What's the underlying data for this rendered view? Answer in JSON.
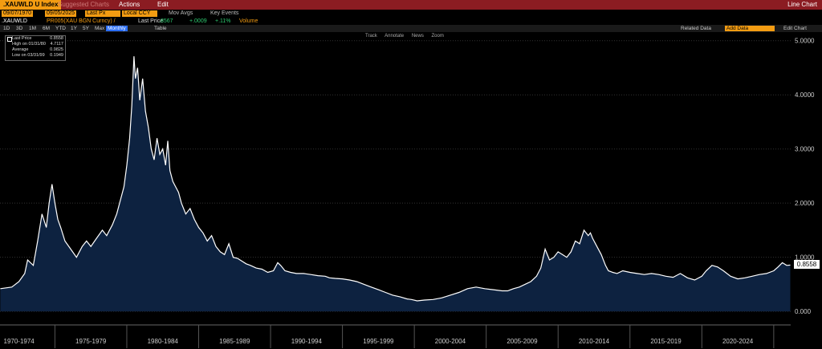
{
  "topbar": {
    "ticker": ".XAUWLD U Index",
    "suggested": "Suggested Charts",
    "actions": "Actions",
    "edit": "Edit",
    "chart_type": "Line Chart"
  },
  "controls": {
    "start_date": "09/07/1970",
    "end_date": "09/05/2025",
    "price_field": "Last Px",
    "currency": "Local CCY",
    "mov_avgs": "Mov Avgs",
    "key_events": "Key Events"
  },
  "security_row": {
    "security": ".XAUWLD",
    "source": "PR005(XAU BGN Curncy) /",
    "last_price_label": "Last Price",
    "last_price": ".8567",
    "change": "+.0009",
    "change_pct": "+.11%",
    "volume": "Volume"
  },
  "period_bar": {
    "periods": [
      "1D",
      "3D",
      "1M",
      "6M",
      "YTD",
      "1Y",
      "5Y",
      "Max"
    ],
    "frequency": "Monthly",
    "table": "Table",
    "related_data": "Related Data",
    "add_data": "Add Data",
    "edit_chart": "Edit Chart"
  },
  "tools": [
    "Track",
    "Annotate",
    "News",
    "Zoom"
  ],
  "legend": {
    "rows": [
      {
        "k": "Last Price",
        "v": "0.8558"
      },
      {
        "k": "High on 01/31/80",
        "v": "4.7117"
      },
      {
        "k": "Average",
        "v": "0.9825"
      },
      {
        "k": "Low on 03/31/99",
        "v": "0.1949"
      }
    ]
  },
  "price_flag": "0.8558",
  "chart_data": {
    "type": "area",
    "title": "",
    "xlabel": "",
    "ylabel": "",
    "xlim": [
      1970.68,
      2025.68
    ],
    "ylim": [
      -0.25,
      5.1
    ],
    "yticks": [
      0,
      1,
      2,
      3,
      4,
      5
    ],
    "ytick_labels": [
      "0.000",
      "1.0000",
      "2.0000",
      "3.0000",
      "4.0000",
      "5.0000"
    ],
    "xticks": [
      1972,
      1977,
      1982,
      1987,
      1992,
      1997,
      2002,
      2007,
      2012,
      2017,
      2022
    ],
    "xtick_labels": [
      "1970-1974",
      "1975-1979",
      "1980-1984",
      "1985-1989",
      "1990-1994",
      "1995-1999",
      "2000-2004",
      "2005-2009",
      "2010-2014",
      "2015-2019",
      "2020-2024"
    ],
    "series": [
      {
        "x": [
          1970.7,
          1971.5,
          1972.0,
          1972.4,
          1972.6,
          1973.0,
          1973.3,
          1973.6,
          1973.9,
          1974.1,
          1974.3,
          1974.5,
          1974.7,
          1974.9,
          1975.2,
          1975.6,
          1976.0,
          1976.4,
          1976.7,
          1977.0,
          1977.4,
          1977.8,
          1978.1,
          1978.5,
          1978.8,
          1979.1,
          1979.3,
          1979.5,
          1979.7,
          1979.85,
          1980.0,
          1980.1,
          1980.25,
          1980.4,
          1980.6,
          1980.8,
          1981.0,
          1981.2,
          1981.4,
          1981.6,
          1981.8,
          1982.0,
          1982.2,
          1982.35,
          1982.5,
          1982.7,
          1982.9,
          1983.1,
          1983.3,
          1983.6,
          1983.9,
          1984.2,
          1984.5,
          1984.8,
          1985.1,
          1985.4,
          1985.7,
          1986.0,
          1986.3,
          1986.6,
          1986.9,
          1987.2,
          1987.5,
          1987.8,
          1988.1,
          1988.5,
          1988.9,
          1989.3,
          1989.7,
          1990.0,
          1990.2,
          1990.5,
          1990.9,
          1991.3,
          1991.8,
          1992.3,
          1992.8,
          1993.3,
          1993.6,
          1994.0,
          1994.5,
          1995.0,
          1995.5,
          1996.0,
          1996.5,
          1997.0,
          1997.5,
          1998.0,
          1998.5,
          1999.0,
          1999.3,
          1999.7,
          2000.2,
          2000.8,
          2001.4,
          2002.0,
          2002.6,
          2003.2,
          2003.8,
          2004.4,
          2005.0,
          2005.6,
          2006.0,
          2006.4,
          2006.8,
          2007.2,
          2007.6,
          2008.0,
          2008.3,
          2008.6,
          2008.9,
          2009.2,
          2009.5,
          2009.8,
          2010.1,
          2010.4,
          2010.7,
          2011.0,
          2011.3,
          2011.6,
          2011.75,
          2011.9,
          2012.2,
          2012.5,
          2012.8,
          2013.0,
          2013.3,
          2013.6,
          2014.0,
          2014.5,
          2015.0,
          2015.5,
          2016.0,
          2016.5,
          2017.0,
          2017.5,
          2018.0,
          2018.5,
          2019.0,
          2019.5,
          2019.8,
          2020.2,
          2020.6,
          2021.0,
          2021.5,
          2022.0,
          2022.5,
          2023.0,
          2023.5,
          2024.0,
          2024.5,
          2024.8,
          2025.1,
          2025.4,
          2025.65
        ],
        "y": [
          0.42,
          0.45,
          0.55,
          0.7,
          0.95,
          0.85,
          1.3,
          1.8,
          1.55,
          2.0,
          2.35,
          2.0,
          1.7,
          1.55,
          1.3,
          1.15,
          1.0,
          1.2,
          1.3,
          1.2,
          1.35,
          1.5,
          1.4,
          1.6,
          1.8,
          2.1,
          2.3,
          2.7,
          3.2,
          3.8,
          4.7117,
          4.3,
          4.5,
          3.9,
          4.3,
          3.7,
          3.4,
          3.0,
          2.8,
          3.2,
          2.9,
          3.0,
          2.7,
          3.15,
          2.6,
          2.4,
          2.3,
          2.2,
          2.0,
          1.8,
          1.9,
          1.7,
          1.55,
          1.45,
          1.3,
          1.4,
          1.2,
          1.1,
          1.05,
          1.25,
          1.0,
          0.98,
          0.93,
          0.88,
          0.85,
          0.8,
          0.78,
          0.72,
          0.75,
          0.9,
          0.85,
          0.75,
          0.72,
          0.7,
          0.7,
          0.68,
          0.66,
          0.65,
          0.62,
          0.61,
          0.6,
          0.58,
          0.55,
          0.5,
          0.45,
          0.4,
          0.35,
          0.3,
          0.27,
          0.23,
          0.22,
          0.1949,
          0.21,
          0.22,
          0.25,
          0.3,
          0.35,
          0.42,
          0.45,
          0.42,
          0.4,
          0.38,
          0.38,
          0.42,
          0.45,
          0.5,
          0.55,
          0.65,
          0.8,
          1.15,
          0.95,
          1.0,
          1.1,
          1.05,
          1.0,
          1.1,
          1.3,
          1.25,
          1.5,
          1.4,
          1.45,
          1.35,
          1.2,
          1.05,
          0.85,
          0.75,
          0.72,
          0.7,
          0.75,
          0.72,
          0.7,
          0.68,
          0.7,
          0.68,
          0.65,
          0.63,
          0.7,
          0.62,
          0.58,
          0.65,
          0.75,
          0.85,
          0.82,
          0.75,
          0.65,
          0.6,
          0.62,
          0.65,
          0.68,
          0.7,
          0.75,
          0.82,
          0.9,
          0.85,
          0.8558
        ]
      }
    ]
  }
}
